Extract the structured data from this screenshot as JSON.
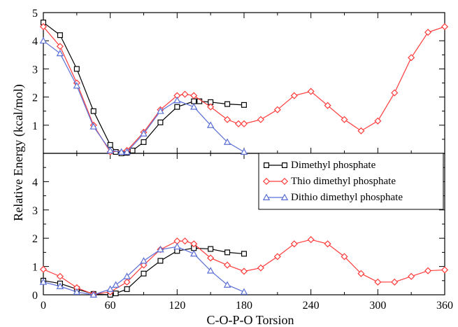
{
  "chart_data": {
    "type": "line",
    "xlabel": "C-O-P-O Torsion",
    "ylabel": "Relative Energy (kcal/mol)",
    "xlim": [
      0,
      360
    ],
    "x_ticks": [
      0,
      60,
      120,
      180,
      240,
      300,
      360
    ],
    "legend": {
      "placement": "right-center",
      "entries": [
        "Dimethyl phosphate",
        "Thio dimethyl phosphate",
        "Dithio dimethyl phosphate"
      ]
    },
    "panels": [
      {
        "name": "top",
        "ylim": [
          0,
          5
        ],
        "y_ticks": [
          1,
          2,
          3,
          4,
          5
        ],
        "series": [
          {
            "name": "Dimethyl phosphate",
            "color": "#000000",
            "marker": "square",
            "points": [
              [
                0,
                4.65
              ],
              [
                15,
                4.2
              ],
              [
                30,
                3.0
              ],
              [
                45,
                1.5
              ],
              [
                60,
                0.3
              ],
              [
                65,
                0.05
              ],
              [
                70,
                0.0
              ],
              [
                75,
                0.02
              ],
              [
                80,
                0.1
              ],
              [
                90,
                0.4
              ],
              [
                105,
                1.1
              ],
              [
                120,
                1.65
              ],
              [
                135,
                1.85
              ],
              [
                140,
                1.85
              ],
              [
                150,
                1.82
              ],
              [
                165,
                1.75
              ],
              [
                180,
                1.72
              ]
            ]
          },
          {
            "name": "Thio dimethyl phosphate",
            "color": "#ff3b3b",
            "marker": "diamond",
            "points": [
              [
                0,
                4.5
              ],
              [
                15,
                3.8
              ],
              [
                30,
                2.5
              ],
              [
                45,
                1.0
              ],
              [
                60,
                0.05
              ],
              [
                75,
                0.1
              ],
              [
                90,
                0.75
              ],
              [
                105,
                1.55
              ],
              [
                120,
                2.05
              ],
              [
                127,
                2.1
              ],
              [
                135,
                2.05
              ],
              [
                150,
                1.65
              ],
              [
                165,
                1.2
              ],
              [
                175,
                1.05
              ],
              [
                180,
                1.05
              ],
              [
                195,
                1.2
              ],
              [
                210,
                1.55
              ],
              [
                225,
                2.05
              ],
              [
                240,
                2.2
              ],
              [
                255,
                1.7
              ],
              [
                270,
                1.2
              ],
              [
                285,
                0.8
              ],
              [
                300,
                1.15
              ],
              [
                315,
                2.15
              ],
              [
                330,
                3.4
              ],
              [
                345,
                4.3
              ],
              [
                360,
                4.5
              ]
            ]
          },
          {
            "name": "Dithio dimethyl phosphate",
            "color": "#5b6fd6",
            "marker": "triangle",
            "points": [
              [
                0,
                4.0
              ],
              [
                15,
                3.55
              ],
              [
                30,
                2.4
              ],
              [
                45,
                0.95
              ],
              [
                60,
                0.1
              ],
              [
                70,
                0.05
              ],
              [
                75,
                0.05
              ],
              [
                90,
                0.7
              ],
              [
                105,
                1.5
              ],
              [
                120,
                1.88
              ],
              [
                135,
                1.65
              ],
              [
                150,
                1.0
              ],
              [
                165,
                0.4
              ],
              [
                180,
                0.05
              ]
            ]
          }
        ]
      },
      {
        "name": "bottom",
        "ylim": [
          0,
          5
        ],
        "y_ticks": [
          0,
          1,
          2,
          3,
          4
        ],
        "series": [
          {
            "name": "Dimethyl phosphate",
            "color": "#000000",
            "marker": "square",
            "points": [
              [
                0,
                0.5
              ],
              [
                15,
                0.4
              ],
              [
                30,
                0.2
              ],
              [
                45,
                0.03
              ],
              [
                60,
                0.0
              ],
              [
                65,
                0.05
              ],
              [
                75,
                0.2
              ],
              [
                90,
                0.75
              ],
              [
                105,
                1.2
              ],
              [
                120,
                1.55
              ],
              [
                135,
                1.65
              ],
              [
                150,
                1.62
              ],
              [
                165,
                1.5
              ],
              [
                180,
                1.45
              ]
            ]
          },
          {
            "name": "Thio dimethyl phosphate",
            "color": "#ff3b3b",
            "marker": "diamond",
            "points": [
              [
                0,
                0.9
              ],
              [
                15,
                0.65
              ],
              [
                30,
                0.25
              ],
              [
                45,
                0.02
              ],
              [
                60,
                0.1
              ],
              [
                75,
                0.45
              ],
              [
                90,
                1.05
              ],
              [
                105,
                1.6
              ],
              [
                120,
                1.9
              ],
              [
                127,
                1.9
              ],
              [
                135,
                1.8
              ],
              [
                150,
                1.3
              ],
              [
                165,
                1.05
              ],
              [
                180,
                0.83
              ],
              [
                195,
                0.95
              ],
              [
                210,
                1.35
              ],
              [
                225,
                1.8
              ],
              [
                240,
                1.95
              ],
              [
                255,
                1.8
              ],
              [
                270,
                1.35
              ],
              [
                285,
                0.75
              ],
              [
                300,
                0.45
              ],
              [
                315,
                0.45
              ],
              [
                330,
                0.65
              ],
              [
                345,
                0.85
              ],
              [
                360,
                0.88
              ]
            ]
          },
          {
            "name": "Dithio dimethyl phosphate",
            "color": "#5b6fd6",
            "marker": "triangle",
            "points": [
              [
                0,
                0.45
              ],
              [
                15,
                0.3
              ],
              [
                30,
                0.1
              ],
              [
                45,
                0.0
              ],
              [
                60,
                0.2
              ],
              [
                65,
                0.35
              ],
              [
                75,
                0.65
              ],
              [
                90,
                1.2
              ],
              [
                105,
                1.6
              ],
              [
                120,
                1.7
              ],
              [
                135,
                1.45
              ],
              [
                150,
                0.85
              ],
              [
                165,
                0.35
              ],
              [
                180,
                0.1
              ]
            ]
          }
        ]
      }
    ]
  }
}
